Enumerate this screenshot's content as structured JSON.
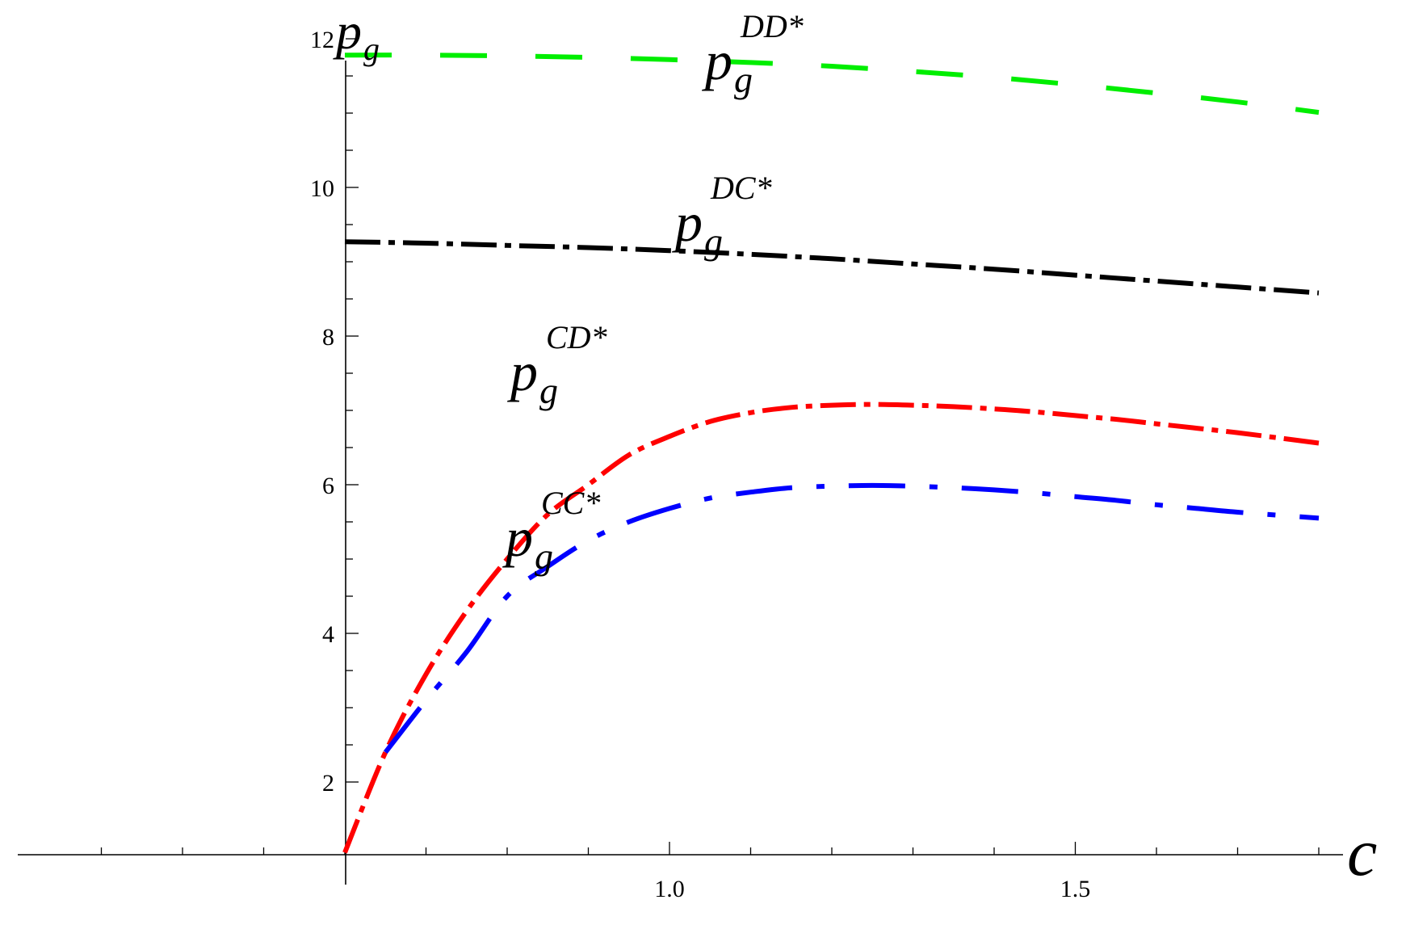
{
  "chart_data": {
    "type": "line",
    "xlabel": "c",
    "ylabel": "p_g",
    "xlim": [
      0.6,
      1.8
    ],
    "ylim": [
      1.5,
      12
    ],
    "x_ticks": [
      {
        "value": 1.0,
        "label": "1.0"
      },
      {
        "value": 1.5,
        "label": "1.5"
      }
    ],
    "y_ticks": [
      {
        "value": 2,
        "label": "2"
      },
      {
        "value": 4,
        "label": "4"
      },
      {
        "value": 6,
        "label": "6"
      },
      {
        "value": 8,
        "label": "8"
      },
      {
        "value": 10,
        "label": "10"
      },
      {
        "value": 12,
        "label": "12"
      }
    ],
    "series": [
      {
        "name": "p_g^DD*",
        "color": "#00ee00",
        "style": "long-dash",
        "x": [
          0.6,
          0.7,
          0.8,
          0.9,
          1.0,
          1.1,
          1.2,
          1.3,
          1.4,
          1.5,
          1.6,
          1.7,
          1.8
        ],
        "y": [
          11.78,
          11.78,
          11.77,
          11.75,
          11.72,
          11.68,
          11.63,
          11.56,
          11.48,
          11.38,
          11.27,
          11.15,
          11.01
        ]
      },
      {
        "name": "p_g^DC*",
        "color": "#000000",
        "style": "dash-dot",
        "x": [
          0.6,
          0.7,
          0.8,
          0.9,
          1.0,
          1.1,
          1.2,
          1.3,
          1.4,
          1.5,
          1.6,
          1.7,
          1.8
        ],
        "y": [
          9.27,
          9.25,
          9.22,
          9.19,
          9.15,
          9.1,
          9.04,
          8.97,
          8.9,
          8.82,
          8.74,
          8.66,
          8.58
        ]
      },
      {
        "name": "p_g^CD*",
        "color": "#ff0000",
        "style": "dash-dot",
        "x": [
          0.6,
          0.65,
          0.7,
          0.75,
          0.8,
          0.85,
          0.9,
          0.95,
          1.0,
          1.05,
          1.1,
          1.15,
          1.2,
          1.25,
          1.3,
          1.35,
          1.4,
          1.45,
          1.5,
          1.55,
          1.6,
          1.65,
          1.7,
          1.75,
          1.8
        ],
        "y": [
          1.05,
          2.4,
          3.45,
          4.3,
          5.0,
          5.6,
          6.0,
          6.4,
          6.65,
          6.85,
          6.97,
          7.04,
          7.07,
          7.08,
          7.07,
          7.05,
          7.02,
          6.98,
          6.93,
          6.88,
          6.82,
          6.76,
          6.7,
          6.63,
          6.56
        ]
      },
      {
        "name": "p_g^CC*",
        "color": "#0000ff",
        "style": "long-dash-dot",
        "x": [
          0.65,
          0.7,
          0.75,
          0.8,
          0.85,
          0.9,
          0.95,
          1.0,
          1.05,
          1.1,
          1.15,
          1.2,
          1.25,
          1.3,
          1.35,
          1.4,
          1.45,
          1.5,
          1.55,
          1.6,
          1.65,
          1.7,
          1.75,
          1.8
        ],
        "y": [
          2.4,
          3.1,
          3.75,
          4.5,
          4.9,
          5.25,
          5.5,
          5.68,
          5.82,
          5.9,
          5.96,
          5.98,
          5.99,
          5.98,
          5.96,
          5.93,
          5.89,
          5.84,
          5.79,
          5.73,
          5.68,
          5.63,
          5.59,
          5.55
        ]
      }
    ],
    "annotations": [
      {
        "series": "p_g^DD*",
        "base": "p",
        "sub": "g",
        "sup": "DD*"
      },
      {
        "series": "p_g^DC*",
        "base": "p",
        "sub": "g",
        "sup": "DC*"
      },
      {
        "series": "p_g^CD*",
        "base": "p",
        "sub": "g",
        "sup": "CD*"
      },
      {
        "series": "p_g^CC*",
        "base": "p",
        "sub": "g",
        "sup": "CC*"
      }
    ],
    "axis_labels": {
      "y": {
        "base": "p",
        "sub": "g"
      },
      "x": {
        "text": "c"
      }
    },
    "grid": false,
    "legend": "none"
  }
}
